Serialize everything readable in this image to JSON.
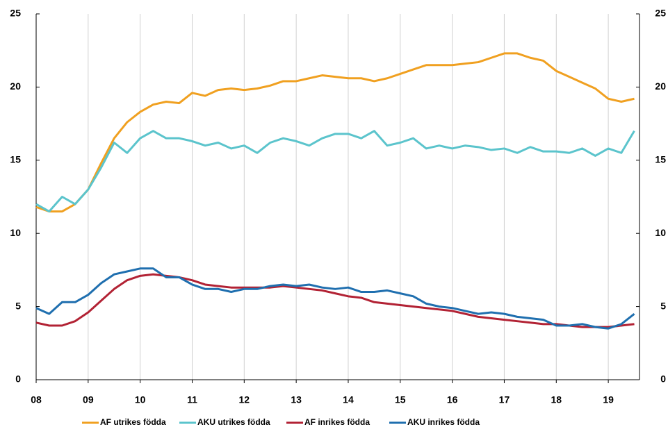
{
  "chart_data": {
    "type": "line",
    "x": [
      2008,
      2008.25,
      2008.5,
      2008.75,
      2009,
      2009.25,
      2009.5,
      2009.75,
      2010,
      2010.25,
      2010.5,
      2010.75,
      2011,
      2011.25,
      2011.5,
      2011.75,
      2012,
      2012.25,
      2012.5,
      2012.75,
      2013,
      2013.25,
      2013.5,
      2013.75,
      2014,
      2014.25,
      2014.5,
      2014.75,
      2015,
      2015.25,
      2015.5,
      2015.75,
      2016,
      2016.25,
      2016.5,
      2016.75,
      2017,
      2017.25,
      2017.5,
      2017.75,
      2018,
      2018.25,
      2018.5,
      2018.75,
      2019,
      2019.25,
      2019.5
    ],
    "series": [
      {
        "name": "AF utrikes födda",
        "color": "#f0a020",
        "values": [
          11.8,
          11.5,
          11.5,
          12.0,
          13.0,
          14.8,
          16.5,
          17.6,
          18.3,
          18.8,
          19.0,
          18.9,
          19.6,
          19.4,
          19.8,
          19.9,
          19.8,
          19.9,
          20.1,
          20.4,
          20.4,
          20.6,
          20.8,
          20.7,
          20.6,
          20.6,
          20.4,
          20.6,
          20.9,
          21.2,
          21.5,
          21.5,
          21.5,
          21.6,
          21.7,
          22.0,
          22.3,
          22.3,
          22.0,
          21.8,
          21.1,
          20.7,
          20.3,
          19.9,
          19.2,
          19.0,
          19.2
        ]
      },
      {
        "name": "AKU utrikes födda",
        "color": "#5bc4cc",
        "values": [
          12.0,
          11.5,
          12.5,
          12.0,
          13.0,
          14.5,
          16.2,
          15.5,
          16.5,
          17.0,
          16.5,
          16.5,
          16.3,
          16.0,
          16.2,
          15.8,
          16.0,
          15.5,
          16.2,
          16.5,
          16.3,
          16.0,
          16.5,
          16.8,
          16.8,
          16.5,
          17.0,
          16.0,
          16.2,
          16.5,
          15.8,
          16.0,
          15.8,
          16.0,
          15.9,
          15.7,
          15.8,
          15.5,
          15.9,
          15.6,
          15.6,
          15.5,
          15.8,
          15.3,
          15.8,
          15.5,
          17.0
        ]
      },
      {
        "name": "AF inrikes födda",
        "color": "#b22234",
        "values": [
          3.9,
          3.7,
          3.7,
          4.0,
          4.6,
          5.4,
          6.2,
          6.8,
          7.1,
          7.2,
          7.1,
          7.0,
          6.8,
          6.5,
          6.4,
          6.3,
          6.3,
          6.3,
          6.3,
          6.4,
          6.3,
          6.2,
          6.1,
          5.9,
          5.7,
          5.6,
          5.3,
          5.2,
          5.1,
          5.0,
          4.9,
          4.8,
          4.7,
          4.5,
          4.3,
          4.2,
          4.1,
          4.0,
          3.9,
          3.8,
          3.8,
          3.7,
          3.6,
          3.6,
          3.6,
          3.7,
          3.8
        ]
      },
      {
        "name": "AKU inrikes födda",
        "color": "#1f6faf",
        "values": [
          4.9,
          4.5,
          5.3,
          5.3,
          5.8,
          6.6,
          7.2,
          7.4,
          7.6,
          7.6,
          7.0,
          7.0,
          6.5,
          6.2,
          6.2,
          6.0,
          6.2,
          6.2,
          6.4,
          6.5,
          6.4,
          6.5,
          6.3,
          6.2,
          6.3,
          6.0,
          6.0,
          6.1,
          5.9,
          5.7,
          5.2,
          5.0,
          4.9,
          4.7,
          4.5,
          4.6,
          4.5,
          4.3,
          4.2,
          4.1,
          3.7,
          3.7,
          3.8,
          3.6,
          3.5,
          3.8,
          4.5
        ]
      }
    ],
    "xlim": [
      2008,
      2019.6
    ],
    "xticks": [
      {
        "value": 2008,
        "label": "08"
      },
      {
        "value": 2009,
        "label": "09"
      },
      {
        "value": 2010,
        "label": "10"
      },
      {
        "value": 2011,
        "label": "11"
      },
      {
        "value": 2012,
        "label": "12"
      },
      {
        "value": 2013,
        "label": "13"
      },
      {
        "value": 2014,
        "label": "14"
      },
      {
        "value": 2015,
        "label": "15"
      },
      {
        "value": 2016,
        "label": "16"
      },
      {
        "value": 2017,
        "label": "17"
      },
      {
        "value": 2018,
        "label": "18"
      },
      {
        "value": 2019,
        "label": "19"
      }
    ],
    "ylim": [
      0,
      25
    ],
    "yticks": [
      0,
      5,
      10,
      15,
      20,
      25
    ],
    "y2lim": [
      0,
      25
    ],
    "y2ticks": [
      0,
      5,
      10,
      15,
      20,
      25
    ],
    "xgrid": true,
    "legend": "bottom"
  }
}
